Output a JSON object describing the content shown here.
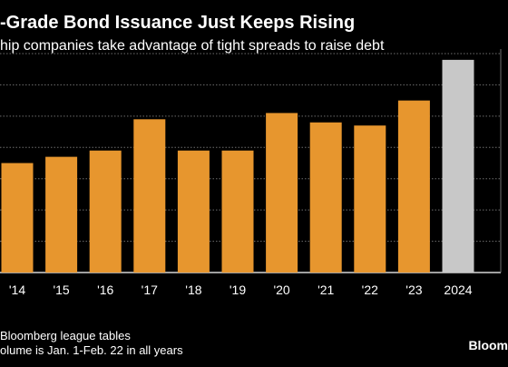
{
  "header": {
    "title": "-Grade Bond Issuance Just Keeps Rising",
    "subtitle": "hip companies take advantage of tight spreads to raise debt"
  },
  "footer": {
    "source": " Bloomberg league tables",
    "note": "olume is Jan. 1-Feb. 22 in all years",
    "brand": "Bloom"
  },
  "colors": {
    "bar": "#e7962e",
    "highlight": "#c8c8c8",
    "grid": "#6e6e6e",
    "background": "#000000"
  },
  "chart_data": {
    "type": "bar",
    "title": "",
    "xlabel": "",
    "ylabel": "",
    "grid": true,
    "categories": [
      "'14",
      "'15",
      "'16",
      "'17",
      "'18",
      "'19",
      "'20",
      "'21",
      "'22",
      "'23",
      "2024"
    ],
    "values": [
      3.5,
      3.7,
      3.9,
      4.9,
      3.9,
      3.9,
      5.1,
      4.8,
      4.7,
      5.5,
      6.8
    ],
    "highlight": [
      false,
      false,
      false,
      false,
      false,
      false,
      false,
      false,
      false,
      false,
      true
    ],
    "ylim": [
      0,
      7
    ],
    "yticks": [
      0,
      1,
      2,
      3,
      4,
      5,
      6,
      7
    ]
  }
}
